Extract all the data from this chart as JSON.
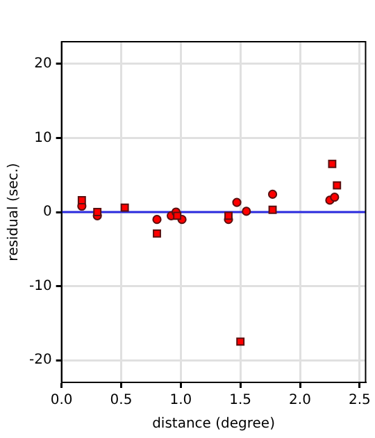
{
  "chart_data": {
    "type": "scatter",
    "xlabel": "distance (degree)",
    "ylabel": "residual (sec.)",
    "xlim": [
      0,
      2.55
    ],
    "xticks": [
      {
        "value": 0,
        "label": "0.0"
      },
      {
        "value": 0.5,
        "label": "0.5"
      },
      {
        "value": 1,
        "label": "1.0"
      },
      {
        "value": 1.5,
        "label": "1.5"
      },
      {
        "value": 2,
        "label": "2.0"
      },
      {
        "value": 2.5,
        "label": "2.5"
      }
    ],
    "ylim": [
      -23,
      23
    ],
    "yticks": [
      -20,
      -10,
      0,
      10,
      20
    ],
    "grid": true,
    "legend": false,
    "ref_lines": [
      {
        "axis": "y",
        "value": 0,
        "color": "#2b2be0"
      }
    ],
    "series": [
      {
        "marker": "circle",
        "color": "#ff0000",
        "x": [
          0.17,
          0.3,
          0.53,
          0.8,
          0.92,
          0.96,
          0.99,
          1.01,
          1.4,
          1.47,
          1.55,
          1.77,
          2.25,
          2.29
        ],
        "values": [
          0.8,
          -0.5,
          null,
          -1.0,
          -0.5,
          0.0,
          null,
          -1.0,
          -1.0,
          1.3,
          0.1,
          2.4,
          1.6,
          2.0
        ]
      },
      {
        "marker": "square",
        "color": "#ff0000",
        "x": [
          0.17,
          0.3,
          0.53,
          0.8,
          0.97,
          1.4,
          1.5,
          1.77,
          2.27,
          2.31
        ],
        "values": [
          1.6,
          0,
          0.6,
          -2.9,
          -0.5,
          -0.5,
          -17.5,
          0.3,
          6.5,
          3.6
        ]
      }
    ]
  }
}
